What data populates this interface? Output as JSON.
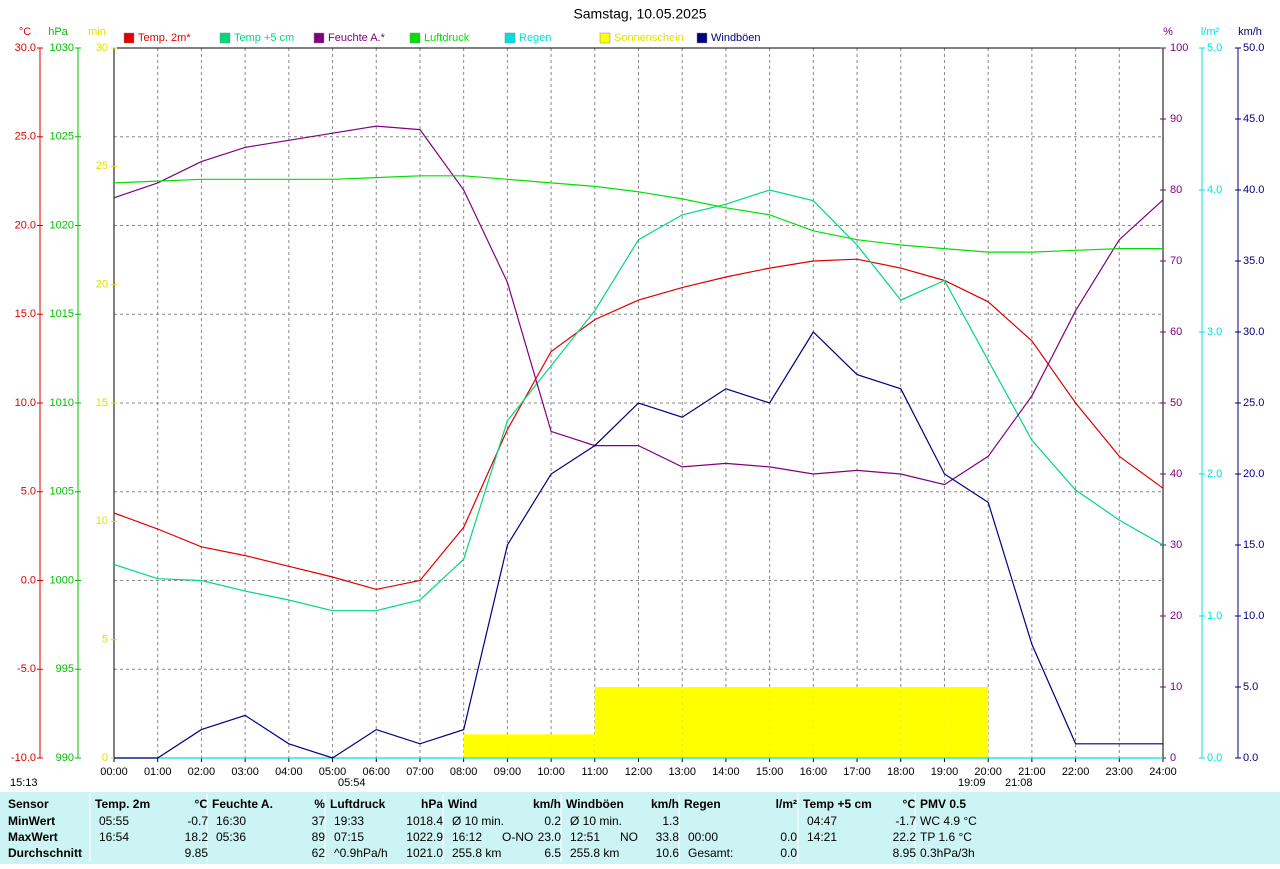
{
  "chart_data": {
    "type": "line",
    "title": "Samstag, 10.05.2025",
    "x": [
      0,
      1,
      2,
      3,
      4,
      5,
      6,
      7,
      8,
      9,
      10,
      11,
      12,
      13,
      14,
      15,
      16,
      17,
      18,
      19,
      20,
      21,
      22,
      23,
      24
    ],
    "xlim": [
      0,
      24
    ],
    "xticks": [
      {
        "value": 0,
        "label": "00:00"
      },
      {
        "value": 1,
        "label": "01:00"
      },
      {
        "value": 2,
        "label": "02:00"
      },
      {
        "value": 3,
        "label": "03:00"
      },
      {
        "value": 4,
        "label": "04:00"
      },
      {
        "value": 5,
        "label": "05:00"
      },
      {
        "value": 6,
        "label": "06:00"
      },
      {
        "value": 7,
        "label": "07:00"
      },
      {
        "value": 8,
        "label": "08:00"
      },
      {
        "value": 9,
        "label": "09:00"
      },
      {
        "value": 10,
        "label": "10:00"
      },
      {
        "value": 11,
        "label": "11:00"
      },
      {
        "value": 12,
        "label": "12:00"
      },
      {
        "value": 13,
        "label": "13:00"
      },
      {
        "value": 14,
        "label": "14:00"
      },
      {
        "value": 15,
        "label": "15:00"
      },
      {
        "value": 16,
        "label": "16:00"
      },
      {
        "value": 17,
        "label": "17:00"
      },
      {
        "value": 18,
        "label": "18:00"
      },
      {
        "value": 19,
        "label": "19:00"
      },
      {
        "value": 20,
        "label": "20:00"
      },
      {
        "value": 21,
        "label": "21:00"
      },
      {
        "value": 22,
        "label": "22:00"
      },
      {
        "value": 23,
        "label": "23:00"
      },
      {
        "value": 24,
        "label": "24:00"
      }
    ],
    "grid": true,
    "axes": [
      {
        "unit": "°C",
        "color": "#e00000",
        "lim": [
          -10,
          30
        ],
        "ticks": [
          {
            "value": -10,
            "label": "-10.0"
          },
          {
            "value": -5,
            "label": "-5.0"
          },
          {
            "value": 0,
            "label": "0.0"
          },
          {
            "value": 5,
            "label": "5.0"
          },
          {
            "value": 10,
            "label": "10.0"
          },
          {
            "value": 15,
            "label": "15.0"
          },
          {
            "value": 20,
            "label": "20.0"
          },
          {
            "value": 25,
            "label": "25.0"
          },
          {
            "value": 30,
            "label": "30.0"
          }
        ]
      },
      {
        "unit": "hPa",
        "color": "#00c000",
        "lim": [
          990,
          1030
        ],
        "ticks": [
          990,
          995,
          1000,
          1005,
          1010,
          1015,
          1020,
          1025,
          1030
        ]
      },
      {
        "unit": "min",
        "color": "#e0e000",
        "lim": [
          0,
          30
        ],
        "ticks": [
          0,
          5,
          10,
          15,
          20,
          25,
          30
        ]
      },
      {
        "unit": "%",
        "color": "#800080",
        "lim": [
          0,
          100
        ],
        "ticks": [
          0,
          10,
          20,
          30,
          40,
          50,
          60,
          70,
          80,
          90,
          100
        ]
      },
      {
        "unit": "l/m²",
        "color": "#00e0e0",
        "lim": [
          0,
          5
        ],
        "ticks": [
          {
            "value": 0,
            "label": "0.0"
          },
          {
            "value": 1,
            "label": "1.0"
          },
          {
            "value": 2,
            "label": "2.0"
          },
          {
            "value": 3,
            "label": "3.0"
          },
          {
            "value": 4,
            "label": "4.0"
          },
          {
            "value": 5,
            "label": "5.0"
          }
        ]
      },
      {
        "unit": "km/h",
        "color": "#000080",
        "lim": [
          0,
          50
        ],
        "ticks": [
          {
            "value": 0,
            "label": "0.0"
          },
          {
            "value": 5,
            "label": "5.0"
          },
          {
            "value": 10,
            "label": "10.0"
          },
          {
            "value": 15,
            "label": "15.0"
          },
          {
            "value": 20,
            "label": "20.0"
          },
          {
            "value": 25,
            "label": "25.0"
          },
          {
            "value": 30,
            "label": "30.0"
          },
          {
            "value": 35,
            "label": "35.0"
          },
          {
            "value": 40,
            "label": "40.0"
          },
          {
            "value": 45,
            "label": "45.0"
          },
          {
            "value": 50,
            "label": "50.0"
          }
        ]
      }
    ],
    "series": [
      {
        "name": "Temp. 2m*",
        "color": "#e00000",
        "axis": 0,
        "values": [
          3.8,
          2.9,
          1.9,
          1.4,
          0.8,
          0.2,
          -0.5,
          0.0,
          3.0,
          8.5,
          12.9,
          14.7,
          15.8,
          16.5,
          17.1,
          17.6,
          18.0,
          18.1,
          17.6,
          16.9,
          15.7,
          13.5,
          10.0,
          7.0,
          5.2
        ]
      },
      {
        "name": "Temp +5 cm",
        "color": "#00d880",
        "axis": 0,
        "values": [
          0.9,
          0.1,
          0.0,
          -0.6,
          -1.1,
          -1.7,
          -1.7,
          -1.1,
          1.2,
          9.0,
          12.1,
          15.2,
          19.2,
          20.6,
          21.2,
          22.0,
          21.4,
          18.9,
          15.8,
          16.9,
          12.4,
          7.9,
          5.1,
          3.4,
          2.0
        ]
      },
      {
        "name": "Feuchte A.*",
        "color": "#800080",
        "axis": 3,
        "values": [
          78.9,
          81,
          84,
          86,
          87,
          88,
          89,
          88.5,
          80,
          67,
          46,
          44,
          44,
          41,
          41.5,
          41,
          40,
          40.5,
          40,
          38.5,
          42.5,
          51,
          63,
          73,
          78.6
        ]
      },
      {
        "name": "Luftdruck",
        "color": "#00e000",
        "axis": 1,
        "values": [
          1022.4,
          1022.5,
          1022.6,
          1022.6,
          1022.6,
          1022.6,
          1022.7,
          1022.8,
          1022.8,
          1022.6,
          1022.4,
          1022.2,
          1021.9,
          1021.5,
          1021.0,
          1020.6,
          1019.7,
          1019.2,
          1018.9,
          1018.7,
          1018.5,
          1018.5,
          1018.6,
          1018.7,
          1018.7
        ]
      },
      {
        "name": "Regen",
        "color": "#00e0e0",
        "axis": 4,
        "values": [
          0,
          0,
          0,
          0,
          0,
          0,
          0,
          0,
          0,
          0,
          0,
          0,
          0,
          0,
          0,
          0,
          0,
          0,
          0,
          0,
          0,
          0,
          0,
          0,
          0
        ]
      },
      {
        "name": "Sonnenschein",
        "color": "#ffff00",
        "axis": 2,
        "style": "step",
        "values": [
          0,
          0,
          0,
          0,
          0,
          0,
          0,
          0,
          1,
          1,
          1,
          3,
          3,
          3,
          3,
          3,
          3,
          3,
          3,
          3,
          0,
          0,
          0,
          0,
          0
        ]
      },
      {
        "name": "Windböen",
        "color": "#000080",
        "axis": 5,
        "values": [
          0,
          0,
          2,
          3,
          1,
          0,
          2,
          1,
          2,
          15,
          20,
          22,
          25,
          24,
          26,
          25,
          30,
          27,
          26,
          20,
          18,
          8,
          1,
          1,
          1
        ]
      }
    ],
    "annotations": [
      "15:13",
      "05:54",
      "19:09",
      "21:08"
    ]
  },
  "table": {
    "columns": [
      {
        "title": "Sensor"
      },
      {
        "title": "Temp. 2m",
        "unit": "°C"
      },
      {
        "title": "Feuchte A.",
        "unit": "%"
      },
      {
        "title": "Luftdruck",
        "unit": "hPa"
      },
      {
        "title": "Wind",
        "unit": "km/h"
      },
      {
        "title": "Windböen",
        "unit": "km/h"
      },
      {
        "title": "Regen",
        "unit": "l/m²"
      },
      {
        "title": "Temp +5 cm",
        "unit": "°C"
      },
      {
        "title": "PMV 0.5"
      }
    ],
    "rows": [
      {
        "label": "MinWert",
        "cells": [
          [
            "05:55",
            "-0.7"
          ],
          [
            "16:30",
            "37"
          ],
          [
            "19:33",
            "1018.4"
          ],
          [
            "Ø 10 min.",
            "0.2"
          ],
          [
            "Ø 10 min.",
            "1.3"
          ],
          null,
          [
            "04:47",
            "-1.7"
          ],
          [
            "WC 4.9 °C"
          ]
        ]
      },
      {
        "label": "MaxWert",
        "cells": [
          [
            "16:54",
            "18.2"
          ],
          [
            "05:36",
            "89"
          ],
          [
            "07:15",
            "1022.9"
          ],
          [
            "16:12",
            "O-NO",
            "23.0"
          ],
          [
            "12:51",
            "NO",
            "33.8"
          ],
          [
            "00:00",
            "0.0"
          ],
          [
            "14:21",
            "22.2"
          ],
          [
            "TP 1.6 °C"
          ]
        ]
      },
      {
        "label": "Durchschnitt",
        "cells": [
          [
            "9.85"
          ],
          [
            "62"
          ],
          [
            "^0.9hPa/h",
            "1021.0"
          ],
          [
            "255.8 km",
            "6.5"
          ],
          [
            "255.8 km",
            "10.6"
          ],
          [
            "Gesamt:",
            "0.0"
          ],
          [
            "8.95"
          ],
          [
            "0.3hPa/3h"
          ]
        ]
      }
    ]
  }
}
